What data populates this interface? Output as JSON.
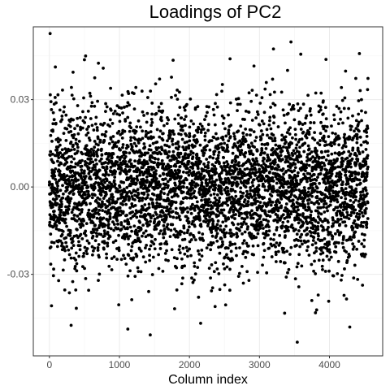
{
  "chart_data": {
    "type": "scatter",
    "title": "Loadings of PC2",
    "xlabel": "Column index",
    "ylabel": "",
    "xlim": [
      -230,
      4760
    ],
    "ylim": [
      -0.058,
      0.055
    ],
    "x_ticks": [
      0,
      1000,
      2000,
      3000,
      4000
    ],
    "x_tick_labels": [
      "0",
      "1000",
      "2000",
      "3000",
      "4000"
    ],
    "y_ticks": [
      -0.03,
      0.0,
      0.03
    ],
    "y_tick_labels": [
      "-0.03",
      "0.00",
      "0.03"
    ],
    "grid": true,
    "point_color": "#000000",
    "n_points": 4500,
    "distribution": {
      "x_range": [
        0,
        4550
      ],
      "y_center": 0.0,
      "y_sd": 0.0135
    },
    "outliers": [
      {
        "x": 10,
        "y": 0.0527
      },
      {
        "x": 85,
        "y": 0.0412
      },
      {
        "x": 30,
        "y": -0.0408
      },
      {
        "x": 310,
        "y": -0.0475
      },
      {
        "x": 500,
        "y": 0.0437
      },
      {
        "x": 700,
        "y": 0.0425
      },
      {
        "x": 1120,
        "y": -0.0488
      },
      {
        "x": 1440,
        "y": -0.0508
      },
      {
        "x": 2160,
        "y": -0.0468
      },
      {
        "x": 2580,
        "y": 0.044
      },
      {
        "x": 3200,
        "y": 0.0474
      },
      {
        "x": 3450,
        "y": 0.0498
      },
      {
        "x": 3540,
        "y": -0.0533
      },
      {
        "x": 3590,
        "y": 0.0456
      },
      {
        "x": 3950,
        "y": 0.0438
      },
      {
        "x": 4290,
        "y": -0.0481
      },
      {
        "x": 3800,
        "y": -0.0432
      },
      {
        "x": 4230,
        "y": 0.0398
      }
    ]
  }
}
